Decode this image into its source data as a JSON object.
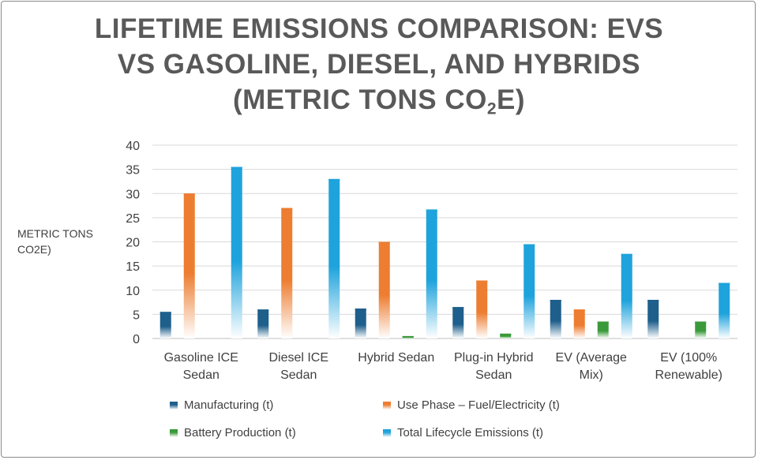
{
  "chart_data": {
    "type": "bar",
    "title_line1": "LIFETIME EMISSIONS COMPARISON: EVS",
    "title_line2": "VS GASOLINE, DIESEL, AND HYBRIDS",
    "title_line3_prefix": "(METRIC TONS CO",
    "title_line3_sub": "2",
    "title_line3_suffix": "E)",
    "ylabel_line1": "METRIC TONS",
    "ylabel_line2": "CO2E)",
    "xlabel": "",
    "ylim": [
      0,
      40
    ],
    "yticks": [
      "0",
      "5",
      "10",
      "15",
      "20",
      "25",
      "30",
      "35",
      "40"
    ],
    "categories": [
      [
        "Gasoline ICE",
        "Sedan"
      ],
      [
        "Diesel ICE",
        "Sedan"
      ],
      [
        "Hybrid Sedan"
      ],
      [
        "Plug-in Hybrid",
        "Sedan"
      ],
      [
        "EV (Average",
        "Mix)"
      ],
      [
        "EV (100%",
        "Renewable)"
      ]
    ],
    "series": [
      {
        "name": "Manufacturing (t)",
        "color": "#1f5f8b",
        "values": [
          5.5,
          6,
          6.2,
          6.5,
          8,
          8
        ]
      },
      {
        "name": "Use Phase – Fuel/Electricity (t)",
        "color": "#ed7d31",
        "values": [
          30,
          27,
          20,
          12,
          6,
          0
        ]
      },
      {
        "name": "Battery Production (t)",
        "color": "#3a9a3a",
        "values": [
          0,
          0,
          0.5,
          1,
          3.5,
          3.5
        ]
      },
      {
        "name": "Total Lifecycle Emissions (t)",
        "color": "#1fa3dc",
        "values": [
          35.5,
          33,
          26.7,
          19.5,
          17.5,
          11.5
        ]
      }
    ],
    "grid": true,
    "legend_position": "bottom"
  }
}
